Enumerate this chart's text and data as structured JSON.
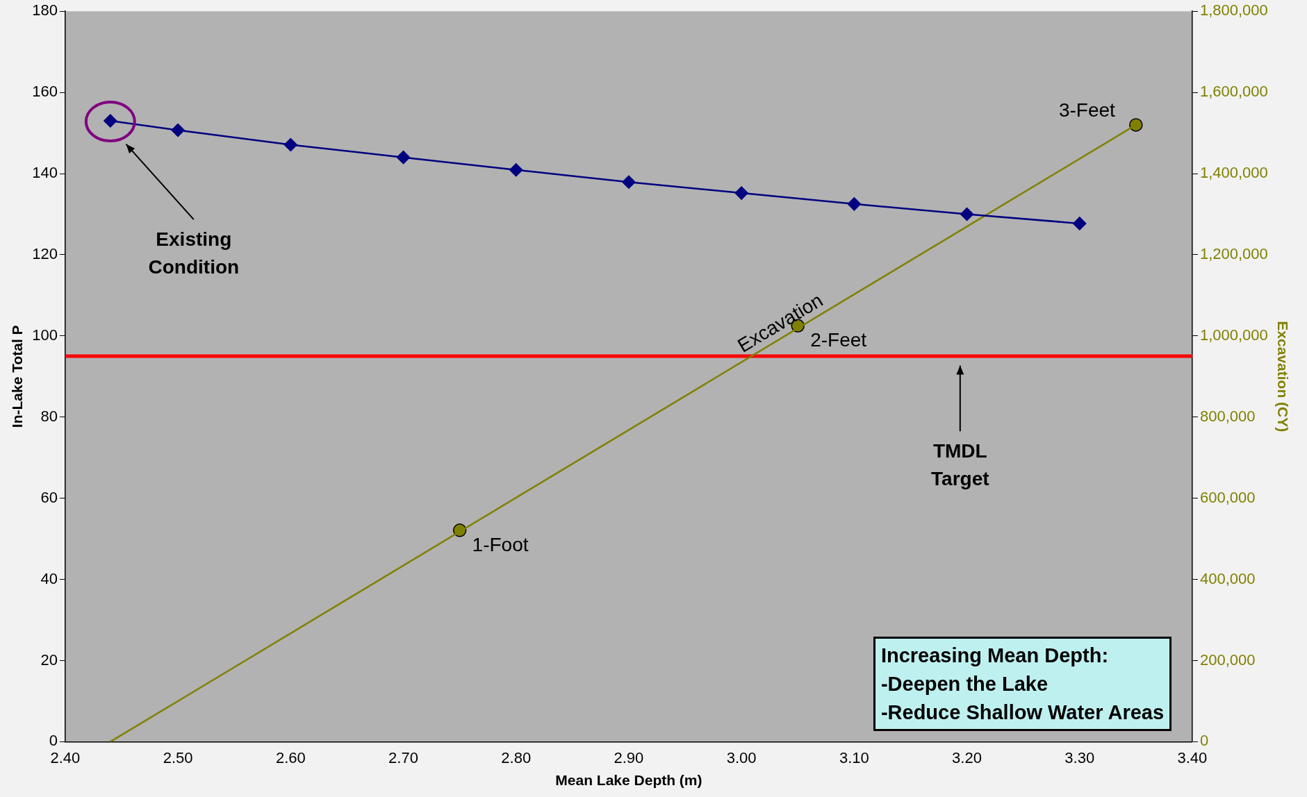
{
  "chart_data": {
    "type": "line",
    "xlabel": "Mean Lake Depth (m)",
    "ylabel": "In-Lake Total P",
    "y2label": "Excavation (CY)",
    "xlim": [
      2.4,
      3.4
    ],
    "xticks": [
      {
        "value": 2.4,
        "label": "2.40"
      },
      {
        "value": 2.5,
        "label": "2.50"
      },
      {
        "value": 2.6,
        "label": "2.60"
      },
      {
        "value": 2.7,
        "label": "2.70"
      },
      {
        "value": 2.8,
        "label": "2.80"
      },
      {
        "value": 2.9,
        "label": "2.90"
      },
      {
        "value": 3.0,
        "label": "3.00"
      },
      {
        "value": 3.1,
        "label": "3.10"
      },
      {
        "value": 3.2,
        "label": "3.20"
      },
      {
        "value": 3.3,
        "label": "3.30"
      },
      {
        "value": 3.4,
        "label": "3.40"
      }
    ],
    "ylim": [
      0,
      180
    ],
    "yticks": [
      0,
      20,
      40,
      60,
      80,
      100,
      120,
      140,
      160,
      180
    ],
    "y2lim": [
      0,
      1800000
    ],
    "y2ticks": [
      {
        "value": 0,
        "label": "0"
      },
      {
        "value": 200000,
        "label": "200,000"
      },
      {
        "value": 400000,
        "label": "400,000"
      },
      {
        "value": 600000,
        "label": "600,000"
      },
      {
        "value": 800000,
        "label": "800,000"
      },
      {
        "value": 1000000,
        "label": "1,000,000"
      },
      {
        "value": 1200000,
        "label": "1,200,000"
      },
      {
        "value": 1400000,
        "label": "1,400,000"
      },
      {
        "value": 1600000,
        "label": "1,600,000"
      },
      {
        "value": 1800000,
        "label": "1,800,000"
      }
    ],
    "series": [
      {
        "color": "#000080",
        "marker": "diamond",
        "x": [
          2.44,
          2.5,
          2.6,
          2.7,
          2.8,
          2.9,
          3.0,
          3.1,
          3.2,
          3.3
        ],
        "values": [
          153,
          150.7,
          147.1,
          144,
          140.9,
          137.9,
          135.2,
          132.5,
          130,
          127.7
        ]
      },
      {
        "name": "Excavation",
        "type": "line",
        "axis": "y2",
        "color": "#808000",
        "marker": "none",
        "x": [
          2.44,
          3.35
        ],
        "values": [
          0,
          1520000
        ]
      },
      {
        "name": "1-Foot",
        "type": "scatter",
        "axis": "y2",
        "color": "#808000",
        "marker": "circle",
        "x": [
          2.75
        ],
        "values": [
          521000
        ]
      },
      {
        "name": "2-Feet",
        "type": "scatter",
        "axis": "y2",
        "color": "#808000",
        "marker": "circle",
        "x": [
          3.05
        ],
        "values": [
          1025000
        ]
      },
      {
        "name": "3-Feet",
        "type": "scatter",
        "axis": "y2",
        "color": "#808000",
        "marker": "circle",
        "x": [
          3.35
        ],
        "values": [
          1520000
        ]
      }
    ],
    "ref_lines": [
      {
        "axis": "y",
        "value": 95,
        "color": "#ff0000"
      }
    ],
    "annotations": [
      "Existing Condition",
      "TMDL Target",
      "Increasing Mean Depth:\n-Deepen the Lake\n-Reduce Shallow Water Areas"
    ],
    "grid": false,
    "legend": false
  }
}
